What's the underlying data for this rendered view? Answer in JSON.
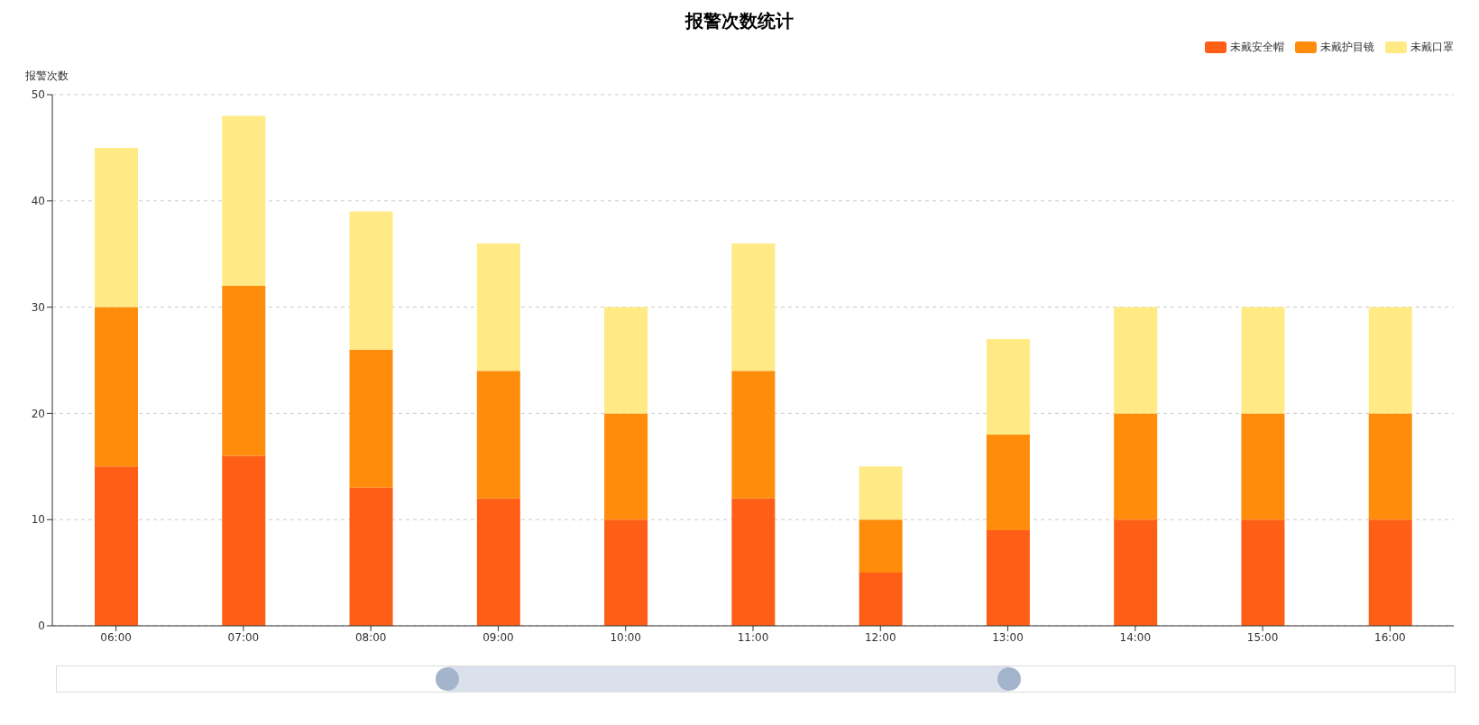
{
  "chart_data": {
    "type": "bar",
    "title": "报警次数统计",
    "ylabel": "报警次数",
    "categories": [
      "06:00",
      "07:00",
      "08:00",
      "09:00",
      "10:00",
      "11:00",
      "12:00",
      "13:00",
      "14:00",
      "15:00",
      "16:00"
    ],
    "series": [
      {
        "name": "未戴安全帽",
        "color": "#ff5e16",
        "values": [
          15,
          16,
          13,
          12,
          10,
          12,
          5,
          9,
          10,
          10,
          10
        ]
      },
      {
        "name": "未戴护目镜",
        "color": "#ff8c0a",
        "values": [
          15,
          16,
          13,
          12,
          10,
          12,
          5,
          9,
          10,
          10,
          10
        ]
      },
      {
        "name": "未戴口罩",
        "color": "#ffea86",
        "values": [
          15,
          16,
          13,
          12,
          10,
          12,
          5,
          9,
          10,
          10,
          10
        ]
      }
    ],
    "stacked": true,
    "ylim": [
      0,
      50
    ],
    "yticks": [
      0,
      10,
      20,
      30,
      40,
      50
    ],
    "grid": "y",
    "legend": "top right"
  }
}
